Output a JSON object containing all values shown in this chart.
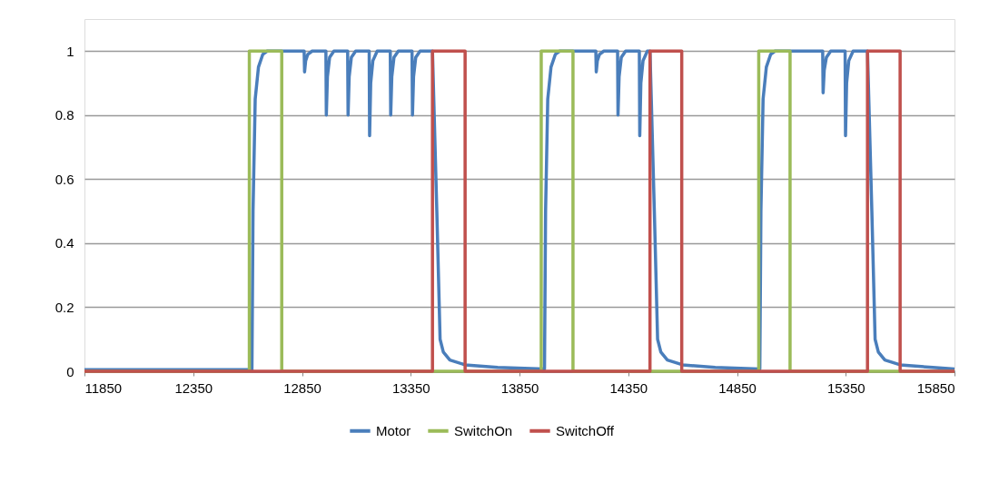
{
  "chart_data": {
    "type": "line",
    "xlim": [
      11850,
      15850
    ],
    "xticks": [
      11850,
      12350,
      12850,
      13350,
      13850,
      14350,
      14850,
      15350,
      15850
    ],
    "ylim": [
      0,
      1.1
    ],
    "yticks": [
      0,
      0.2,
      0.4,
      0.6,
      0.8,
      1
    ],
    "grid": "y",
    "legend": "bottom",
    "marker": "none",
    "line_style": "solid",
    "series": [
      {
        "name": "Motor",
        "color": "#4a7ebb",
        "x": [
          11850,
          12620,
          12625,
          12635,
          12650,
          12670,
          12690,
          12860,
          12862,
          12867,
          12877,
          12897,
          12960,
          12962,
          12967,
          12977,
          12997,
          13060,
          13062,
          13067,
          13077,
          13097,
          13159,
          13161,
          13166,
          13176,
          13196,
          13256,
          13258,
          13263,
          13273,
          13293,
          13356,
          13358,
          13363,
          13373,
          13393,
          13450,
          13470,
          13485,
          13500,
          13530,
          13600,
          13750,
          13965,
          13970,
          13980,
          13995,
          14015,
          14035,
          14201,
          14203,
          14208,
          14218,
          14238,
          14301,
          14303,
          14308,
          14318,
          14338,
          14401,
          14403,
          14408,
          14418,
          14438,
          14450,
          14470,
          14485,
          14500,
          14530,
          14600,
          14750,
          14955,
          14960,
          14970,
          14985,
          15005,
          15025,
          15244,
          15246,
          15251,
          15261,
          15281,
          15347,
          15349,
          15354,
          15364,
          15384,
          15450,
          15470,
          15485,
          15500,
          15530,
          15600,
          15750,
          15850
        ],
        "values": [
          0.005,
          0.005,
          0.5,
          0.85,
          0.95,
          0.99,
          1,
          1,
          0.935,
          0.97,
          0.99,
          1,
          1,
          0.8,
          0.92,
          0.98,
          1,
          1,
          0.8,
          0.92,
          0.98,
          1,
          1,
          0.736,
          0.9,
          0.97,
          1,
          1,
          0.8,
          0.92,
          0.98,
          1,
          1,
          0.8,
          0.92,
          0.98,
          1,
          1,
          0.5,
          0.1,
          0.06,
          0.035,
          0.02,
          0.012,
          0.007,
          0.5,
          0.85,
          0.95,
          0.99,
          1,
          1,
          0.935,
          0.97,
          0.99,
          1,
          1,
          0.8,
          0.92,
          0.98,
          1,
          1,
          0.736,
          0.9,
          0.97,
          1,
          1,
          0.5,
          0.1,
          0.06,
          0.035,
          0.02,
          0.012,
          0.007,
          0.5,
          0.85,
          0.95,
          0.99,
          1,
          1,
          0.87,
          0.94,
          0.98,
          1,
          1,
          0.736,
          0.9,
          0.97,
          1,
          1,
          0.5,
          0.1,
          0.06,
          0.035,
          0.02,
          0.012,
          0.007
        ]
      },
      {
        "name": "SwitchOn",
        "color": "#9bbb59",
        "x": [
          11850,
          12608,
          12608,
          12757,
          12757,
          13950,
          13950,
          14096,
          14096,
          14950,
          14950,
          15094,
          15094,
          15850
        ],
        "values": [
          0,
          0,
          1,
          1,
          0,
          0,
          1,
          1,
          0,
          0,
          1,
          1,
          0,
          0
        ]
      },
      {
        "name": "SwitchOff",
        "color": "#c0504d",
        "x": [
          11850,
          13450,
          13450,
          13600,
          13600,
          14450,
          14450,
          14596,
          14596,
          15450,
          15450,
          15600,
          15600,
          15850
        ],
        "values": [
          0,
          0,
          1,
          1,
          0,
          0,
          1,
          1,
          0,
          0,
          1,
          1,
          0,
          0
        ]
      }
    ]
  }
}
